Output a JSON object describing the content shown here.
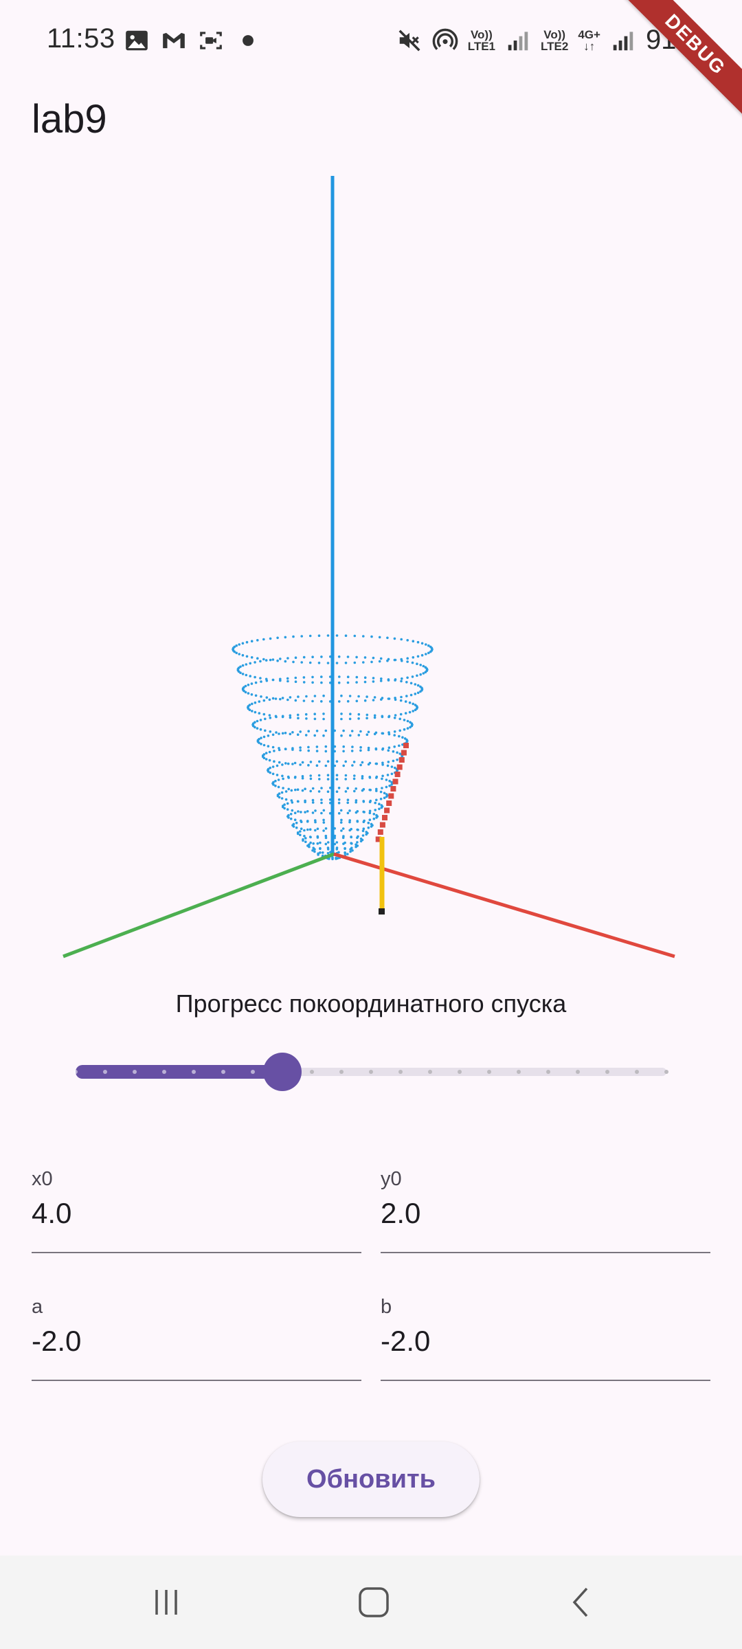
{
  "status_bar": {
    "time": "11:53",
    "battery": "91%",
    "lte1": {
      "top": "Vo))",
      "bottom": "LTE1"
    },
    "lte2": {
      "top": "Vo))",
      "bottom": "LTE2"
    },
    "network": "4G+",
    "left_icons": [
      "image-icon",
      "gmail-icon",
      "screen-record-icon",
      "dot-icon"
    ],
    "right_icons": [
      "mute-icon",
      "hotspot-icon",
      "signal-icon",
      "signal-icon",
      "battery-icon"
    ]
  },
  "debug_banner": "DEBUG",
  "app_bar": {
    "title": "lab9"
  },
  "plot": {
    "axis_colors": {
      "x": "#e0483e",
      "y": "#4caf50",
      "z": "#2196e0"
    },
    "surface_color": "#2a9de0",
    "path_color": "#d84a42",
    "marker_color": "#f1c20f"
  },
  "slider": {
    "label": "Прогресс покоординатного спуска",
    "value": 0.35,
    "divisions": 20,
    "active_color": "#6750a4",
    "inactive_color": "#e6e0ea"
  },
  "fields": {
    "x0": {
      "label": "x0",
      "value": "4.0"
    },
    "y0": {
      "label": "y0",
      "value": "2.0"
    },
    "a": {
      "label": "a",
      "value": "-2.0"
    },
    "b": {
      "label": "b",
      "value": "-2.0"
    }
  },
  "update_button": {
    "label": "Обновить"
  },
  "nav_bar": {
    "items": [
      "recents-icon",
      "home-icon",
      "back-icon"
    ]
  }
}
